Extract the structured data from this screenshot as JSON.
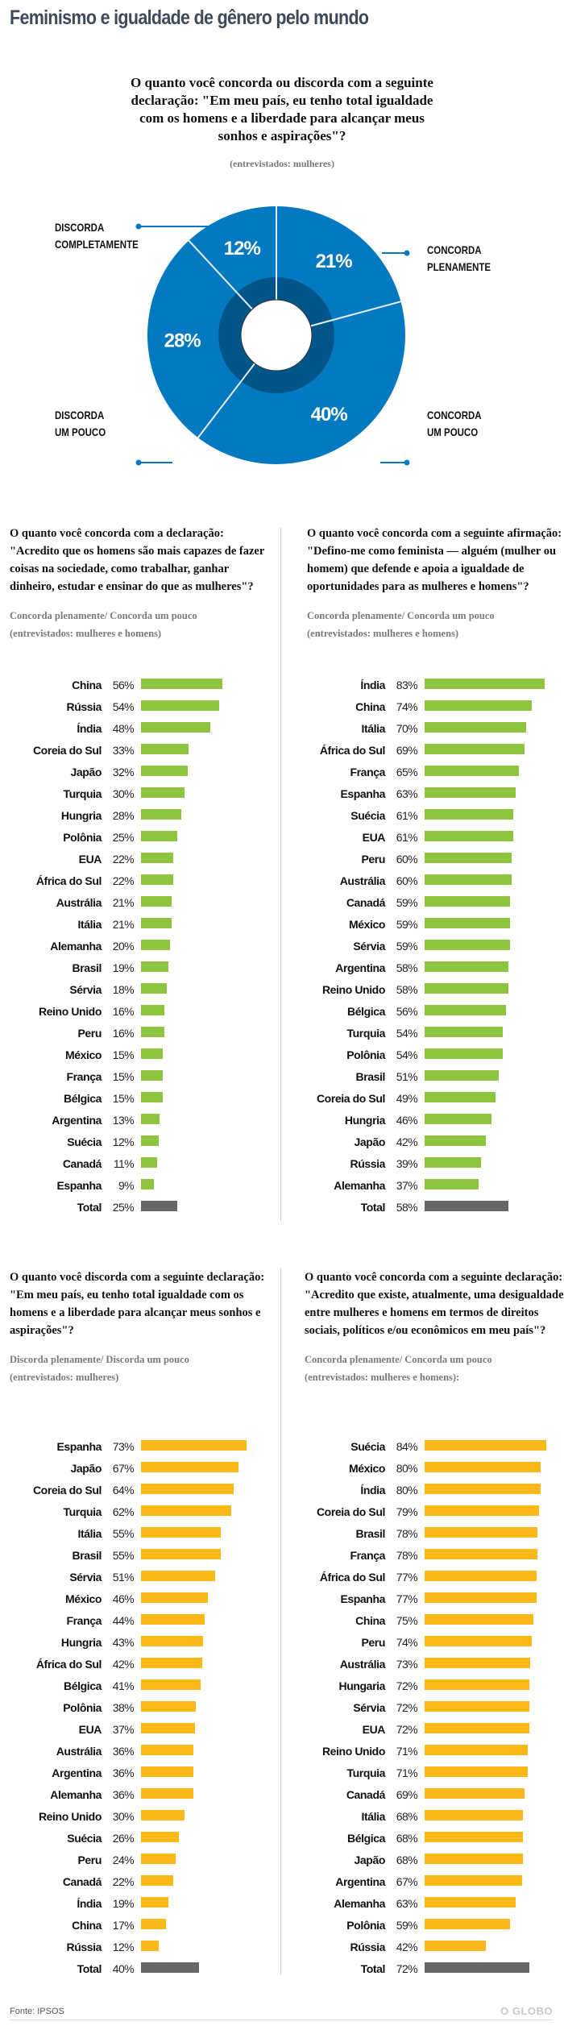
{
  "title": "Feminismo e igualdade de gênero pelo mundo",
  "colors": {
    "green": "#8cc63f",
    "yellow": "#fbb917",
    "total": "#666666",
    "pie": "#0279c1",
    "pie_inner": "#005588"
  },
  "chart_data": [
    {
      "type": "pie",
      "title": "O quanto você concorda ou discorda com a seguinte declaração: \"Em meu país, eu tenho total igualdade com os homens e a liberdade para alcançar meus sonhos e aspirações\"?",
      "subtitle": "(entrevistados: mulheres)",
      "slices": [
        {
          "label": "CONCORDA PLENAMENTE",
          "label_lines": [
            "CONCORDA",
            "PLENAMENTE"
          ],
          "value": 21,
          "text": "21%"
        },
        {
          "label": "CONCORDA UM POUCO",
          "label_lines": [
            "CONCORDA",
            "UM POUCO"
          ],
          "value": 40,
          "text": "40%"
        },
        {
          "label": "DISCORDA UM POUCO",
          "label_lines": [
            "DISCORDA",
            "UM POUCO"
          ],
          "value": 28,
          "text": "28%"
        },
        {
          "label": "DISCORDA COMPLETAMENTE",
          "label_lines": [
            "DISCORDA",
            "COMPLETAMENTE"
          ],
          "value": 12,
          "text": "12%"
        }
      ]
    },
    {
      "type": "bar",
      "title": "O quanto você concorda com a declaração: \"Acredito que os homens são mais capazes de fazer coisas na sociedade, como trabalhar, ganhar dinheiro, estudar e ensinar do que as mulheres\"?",
      "subtitle_lines": [
        "Concorda plenamente/ Concorda um pouco",
        "(entrevistados: mulheres e homens)"
      ],
      "color": "green",
      "categories": [
        "China",
        "Rússia",
        "Índia",
        "Coreia do Sul",
        "Japão",
        "Turquia",
        "Hungria",
        "Polônia",
        "EUA",
        "África do Sul",
        "Austrália",
        "Itália",
        "Alemanha",
        "Brasil",
        "Sérvia",
        "Reino Unido",
        "Peru",
        "México",
        "França",
        "Bélgica",
        "Argentina",
        "Suécia",
        "Canadá",
        "Espanha",
        "Total"
      ],
      "values": [
        56,
        54,
        48,
        33,
        32,
        30,
        28,
        25,
        22,
        22,
        21,
        21,
        20,
        19,
        18,
        16,
        16,
        15,
        15,
        15,
        13,
        12,
        11,
        9,
        25
      ],
      "xlim": [
        0,
        100
      ]
    },
    {
      "type": "bar",
      "title": "O quanto você concorda com a seguinte afirmação: \"Defino-me como feminista — alguém (mulher ou homem) que defende e apoia a igualdade de oportunidades para as mulheres e homens\"?",
      "subtitle_lines": [
        "Concorda plenamente/ Concorda um pouco",
        "(entrevistados: mulheres e homens)"
      ],
      "color": "green",
      "categories": [
        "Índia",
        "China",
        "Itália",
        "África do Sul",
        "França",
        "Espanha",
        "Suécia",
        "EUA",
        "Peru",
        "Austrália",
        "Canadá",
        "México",
        "Sérvia",
        "Argentina",
        "Reino Unido",
        "Bélgica",
        "Turquia",
        "Polônia",
        "Brasil",
        "Coreia do Sul",
        "Hungria",
        "Japão",
        "Rússia",
        "Alemanha",
        "Total"
      ],
      "values": [
        83,
        74,
        70,
        69,
        65,
        63,
        61,
        61,
        60,
        60,
        59,
        59,
        59,
        58,
        58,
        56,
        54,
        54,
        51,
        49,
        46,
        42,
        39,
        37,
        58
      ],
      "xlim": [
        0,
        100
      ]
    },
    {
      "type": "bar",
      "title": "O quanto você discorda com a seguinte declaração: \"Em meu país, eu tenho total igualdade com os homens e a liberdade para alcançar meus sonhos e aspirações\"?",
      "subtitle_lines": [
        "Discorda plenamente/ Discorda um pouco",
        "(entrevistados: mulheres)"
      ],
      "color": "yellow",
      "categories": [
        "Espanha",
        "Japão",
        "Coreia do Sul",
        "Turquia",
        "Itália",
        "Brasil",
        "Sérvia",
        "México",
        "França",
        "Hungria",
        "África do Sul",
        "Bélgica",
        "Polônia",
        "EUA",
        "Austrália",
        "Argentina",
        "Alemanha",
        "Reino Unido",
        "Suécia",
        "Peru",
        "Canadá",
        "Índia",
        "China",
        "Rússia",
        "Total"
      ],
      "values": [
        73,
        67,
        64,
        62,
        55,
        55,
        51,
        46,
        44,
        43,
        42,
        41,
        38,
        37,
        36,
        36,
        36,
        30,
        26,
        24,
        22,
        19,
        17,
        12,
        40
      ],
      "xlim": [
        0,
        100
      ]
    },
    {
      "type": "bar",
      "title": "O quanto você concorda com a seguinte declaração: \"Acredito que existe, atualmente, uma desigualdade entre mulheres e homens em termos de direitos sociais, políticos e/ou econômicos em meu país\"?",
      "subtitle_lines": [
        "Concorda plenamente/ Concorda um pouco",
        "(entrevistados: mulheres e homens):"
      ],
      "color": "yellow",
      "categories": [
        "Suécia",
        "México",
        "Índia",
        "Coreia do Sul",
        "Brasil",
        "França",
        "África do Sul",
        "Espanha",
        "China",
        "Peru",
        "Austrália",
        "Hungaria",
        "Sérvia",
        "EUA",
        "Reino Unido",
        "Turquia",
        "Canadá",
        "Itália",
        "Bélgica",
        "Japão",
        "Argentina",
        "Alemanha",
        "Polônia",
        "Rússia",
        "Total"
      ],
      "values": [
        84,
        80,
        80,
        79,
        78,
        78,
        77,
        77,
        75,
        74,
        73,
        72,
        72,
        72,
        71,
        71,
        69,
        68,
        68,
        68,
        67,
        63,
        59,
        42,
        72
      ],
      "xlim": [
        0,
        100
      ]
    }
  ],
  "footer": {
    "source": "Fonte: IPSOS",
    "logo": "O GLOBO"
  }
}
